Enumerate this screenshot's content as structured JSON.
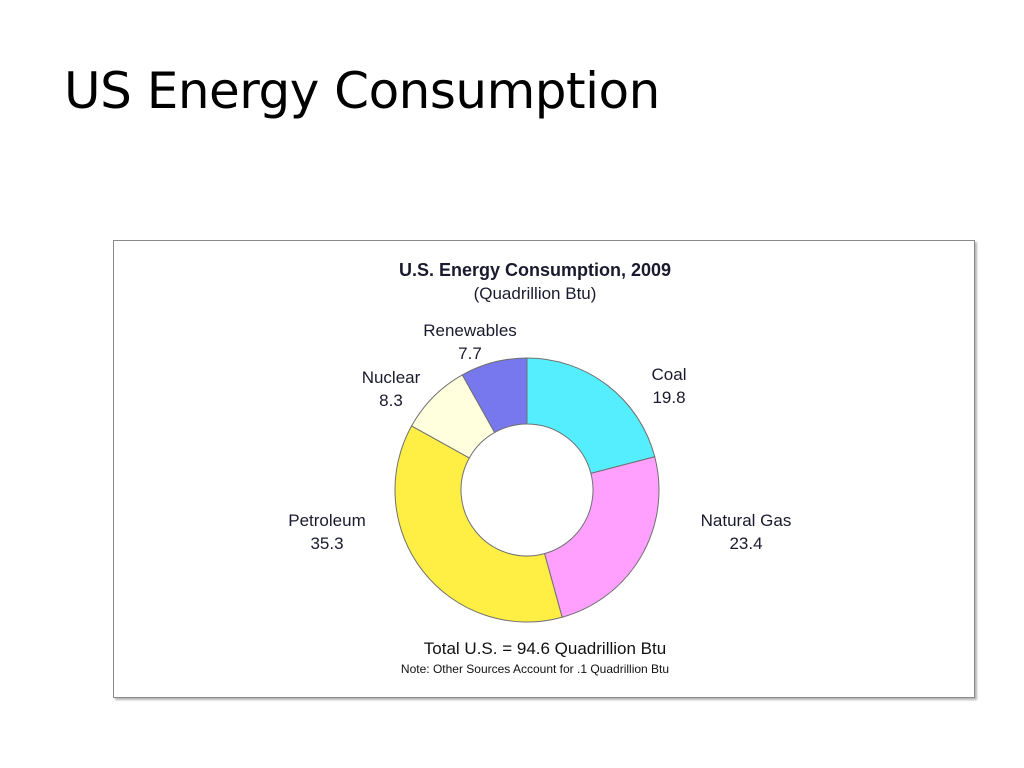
{
  "slide": {
    "title": "US Energy Consumption"
  },
  "chart_data": {
    "type": "pie",
    "style": "donut",
    "title": "U.S. Energy Consumption, 2009",
    "subtitle": "(Quadrillion Btu)",
    "categories": [
      "Coal",
      "Natural Gas",
      "Petroleum",
      "Nuclear",
      "Renewables"
    ],
    "values": [
      19.8,
      23.4,
      35.3,
      8.3,
      7.7
    ],
    "value_labels": [
      "19.8",
      "23.4",
      "35.3",
      "8.3",
      "7.7"
    ],
    "colors": [
      "#55eeff",
      "#ffa0ff",
      "#ffee44",
      "#ffffdd",
      "#7777ee"
    ],
    "total_note": "Total U.S. = 94.6 Quadrillion Btu",
    "footnote": "Note: Other Sources Account for .1 Quadrillion Btu",
    "legend": "none",
    "grid": false
  }
}
